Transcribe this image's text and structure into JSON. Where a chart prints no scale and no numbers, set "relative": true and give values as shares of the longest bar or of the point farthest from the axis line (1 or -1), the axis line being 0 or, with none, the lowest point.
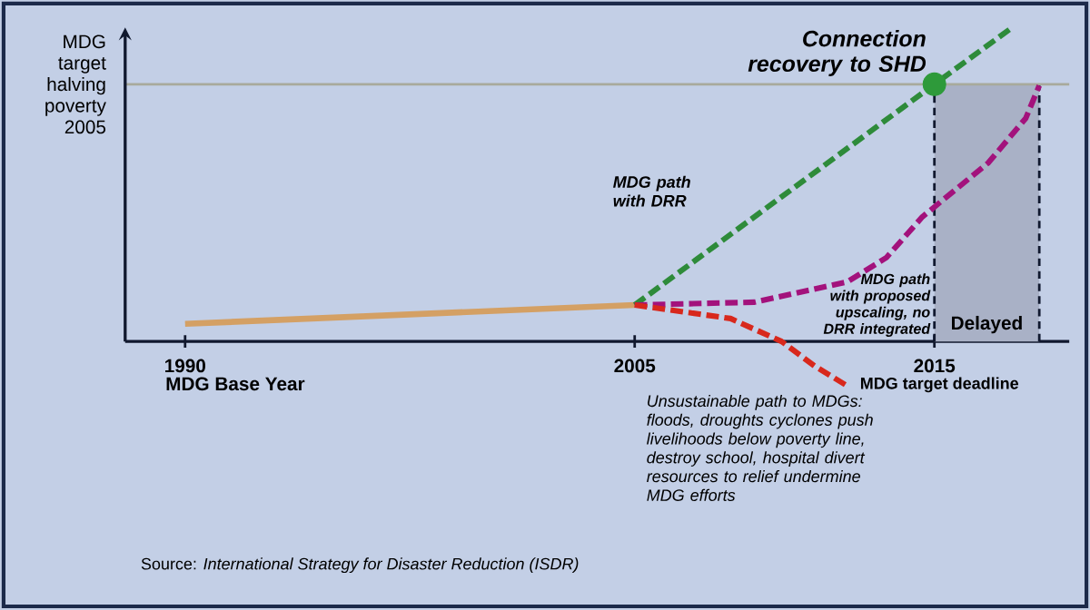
{
  "chart_data": {
    "type": "line",
    "relative": true,
    "xlim": [
      1988,
      2019.5
    ],
    "xticks": [
      1990,
      2005,
      2015
    ],
    "tick_labels": "x",
    "series": [
      {
        "color": "#d4a064",
        "line_style": "solid",
        "x": [
          1990,
          2005
        ],
        "values": [
          0.056,
          0.116
        ]
      },
      {
        "color": "#2e8b3a",
        "line_style": "dashed",
        "x": [
          2005,
          2015,
          2017.6
        ],
        "values": [
          0.116,
          0.819,
          1.0
        ]
      },
      {
        "color": "#a3127c",
        "line_style": "dashed",
        "x": [
          2005,
          2009,
          2012.1,
          2013.4,
          2014.6,
          2016.8,
          2018.05,
          2018.5
        ],
        "values": [
          0.116,
          0.125,
          0.19,
          0.267,
          0.397,
          0.569,
          0.711,
          0.815
        ]
      },
      {
        "color": "#d8281c",
        "line_style": "dashed",
        "x": [
          2005,
          2008.2,
          2009.9,
          2011,
          2012.1
        ],
        "values": [
          0.116,
          0.073,
          0,
          -0.078,
          -0.142
        ]
      },
      {
        "type": "scatter",
        "color": "#2e9a3a",
        "marker": "circle",
        "x": [
          2015
        ],
        "values": [
          0.819
        ]
      }
    ],
    "ref_lines": [
      {
        "axis": "y",
        "value": 0.819,
        "label": "MDG target halving poverty 2005",
        "color": "#a8aa9c"
      }
    ],
    "bands": [
      {
        "axis": "x",
        "from": 2015,
        "to": 2018.5,
        "label": "Delayed",
        "color": "#a9b1c6"
      }
    ],
    "annotations": [
      "MDG Base Year",
      "MDG target deadline",
      {
        "text": "Connection recovery to SHD",
        "x": 2015,
        "y": 0.819
      },
      "MDG path with DRR",
      "MDG path with proposed upscaling, no DRR integrated",
      "Unsustainable path to MDGs: floods, droughts cyclones push livelihoods below poverty line, destroy school, hospital divert resources to relief undermine MDG efforts",
      "Source: *International Strategy for Disaster Reduction (ISDR)*"
    ]
  }
}
